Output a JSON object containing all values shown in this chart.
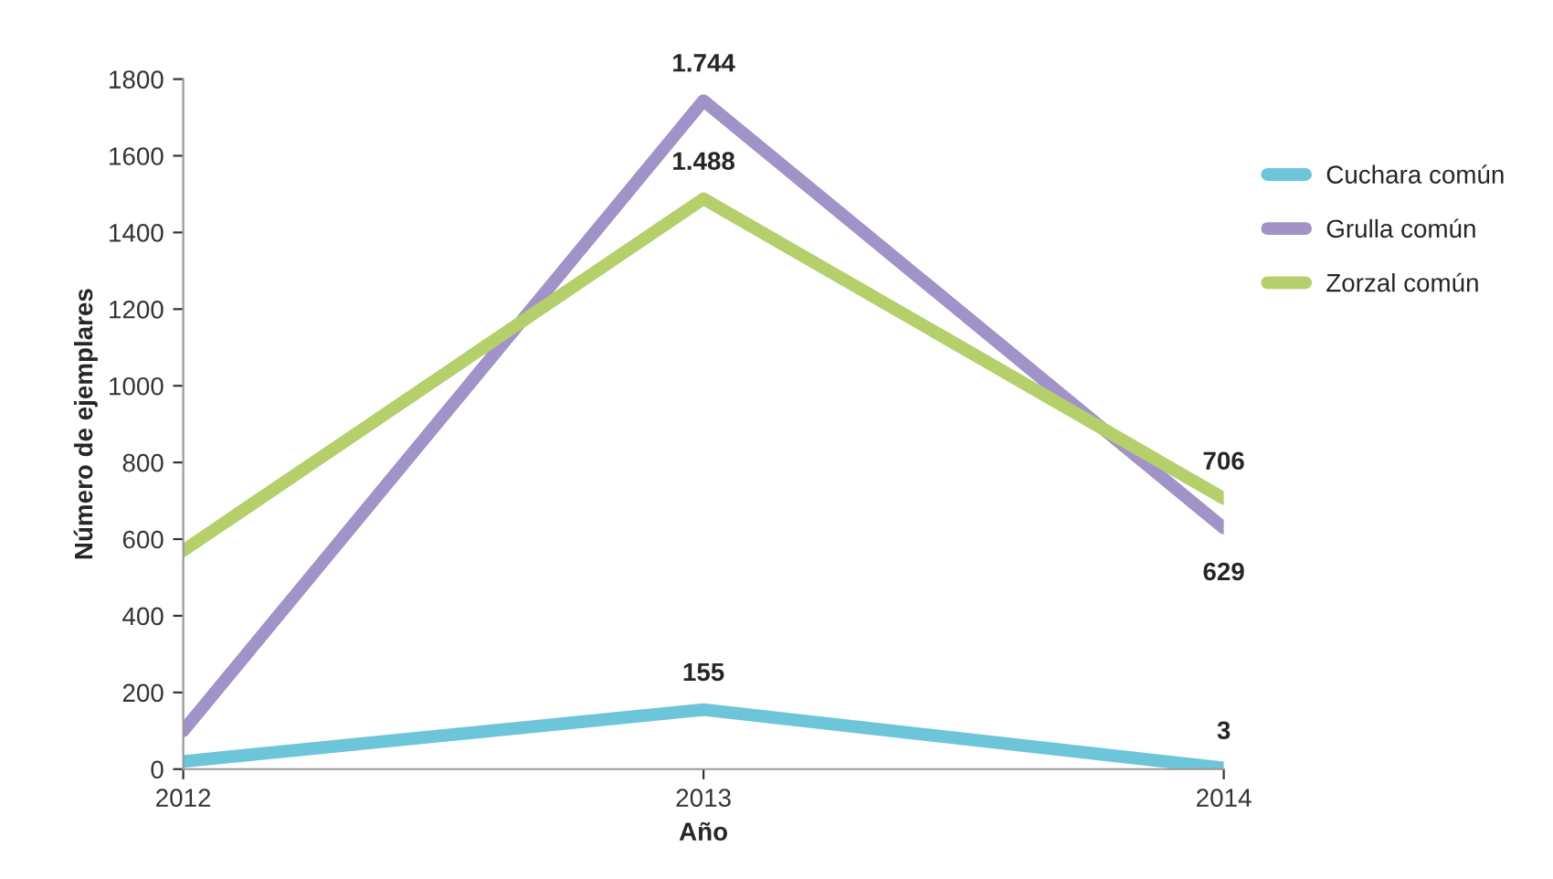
{
  "chart_data": {
    "type": "line",
    "xlabel": "Año",
    "ylabel": "Número de ejemplares",
    "x": [
      2012,
      2013,
      2014
    ],
    "xlim": [
      2012,
      2014
    ],
    "xticks": [
      2012,
      2013,
      2014
    ],
    "ylim": [
      0,
      1800
    ],
    "yticks": [
      0,
      200,
      400,
      600,
      800,
      1000,
      1200,
      1400,
      1600,
      1800
    ],
    "grid": false,
    "legend": "right",
    "marker": "none",
    "line_style": "solid",
    "series": [
      {
        "name": "Cuchara común",
        "color": "#6cc5d9",
        "values": [
          20,
          155,
          3
        ],
        "value_labels": [
          null,
          "155",
          "3"
        ]
      },
      {
        "name": "Grulla común",
        "color": "#a193c8",
        "values": [
          100,
          1744,
          629
        ],
        "value_labels": [
          null,
          "1.744",
          "629"
        ]
      },
      {
        "name": "Zorzal común",
        "color": "#b5cf6b",
        "values": [
          570,
          1488,
          706
        ],
        "value_labels": [
          null,
          "1.488",
          "706"
        ]
      }
    ]
  }
}
